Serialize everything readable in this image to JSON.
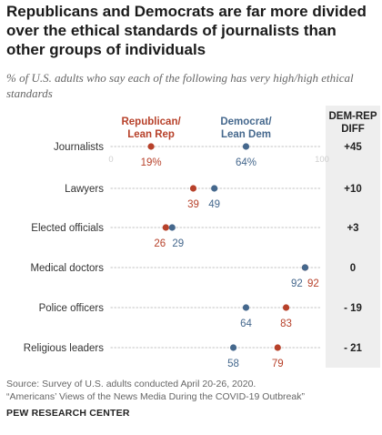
{
  "title": "Republicans and Democrats are far more divided over the ethical standards of journalists than other groups of individuals",
  "subtitle": "% of U.S. adults who say each of the following has very high/high ethical standards",
  "diff_header": "DEM-REP DIFF",
  "source_lines": [
    "Source: Survey of U.S. adults conducted April 20-26, 2020.",
    "“Americans’ Views of the News Media During the COVID-19 Outbreak”"
  ],
  "brand": "PEW RESEARCH CENTER",
  "colors": {
    "republican": "#b7412a",
    "democrat": "#45688d",
    "line": "#cfcfcf",
    "diff_bg": "#eeeeee"
  },
  "chart_data": {
    "type": "dot",
    "xlim": [
      0,
      100
    ],
    "axis_tick_labels": [
      "0",
      "100"
    ],
    "categories": [
      "Journalists",
      "Lawyers",
      "Elected officials",
      "Medical doctors",
      "Police officers",
      "Religious leaders"
    ],
    "series": [
      {
        "name": "Republican/\nLean Rep",
        "key": "republican",
        "values": [
          19,
          39,
          26,
          92,
          83,
          79
        ],
        "labels": [
          "19%",
          "39",
          "26",
          "92",
          "83",
          "79"
        ]
      },
      {
        "name": "Democrat/\nLean Dem",
        "key": "democrat",
        "values": [
          64,
          49,
          29,
          92,
          64,
          58
        ],
        "labels": [
          "64%",
          "49",
          "29",
          "92",
          "64",
          "58"
        ]
      }
    ],
    "diff": [
      "+45",
      "+10",
      "+3",
      "0",
      "- 19",
      "- 21"
    ]
  }
}
